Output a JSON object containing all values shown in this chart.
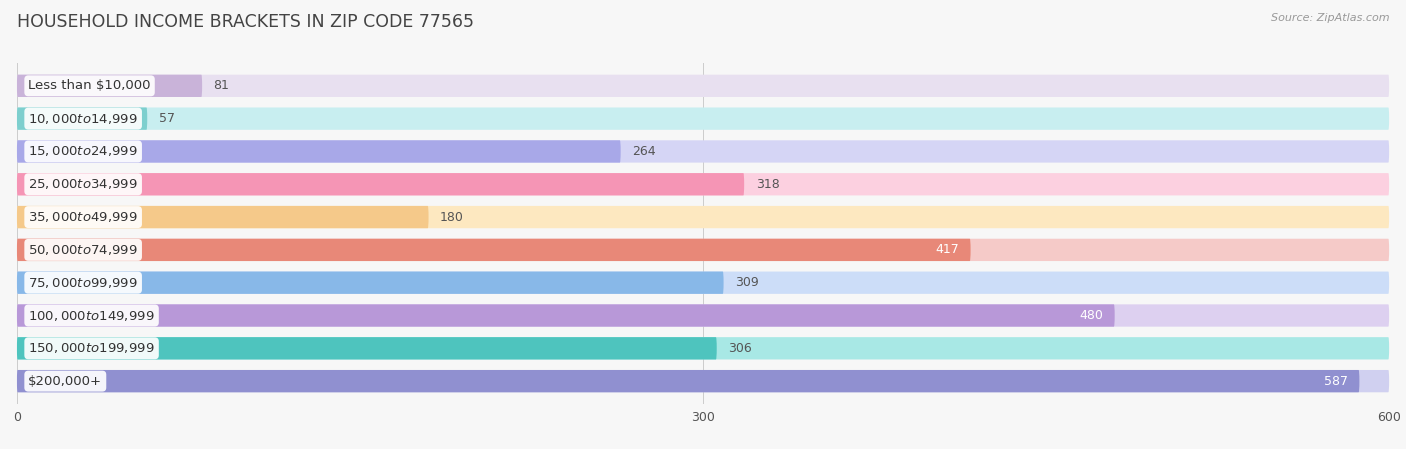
{
  "title": "HOUSEHOLD INCOME BRACKETS IN ZIP CODE 77565",
  "source": "Source: ZipAtlas.com",
  "categories": [
    "Less than $10,000",
    "$10,000 to $14,999",
    "$15,000 to $24,999",
    "$25,000 to $34,999",
    "$35,000 to $49,999",
    "$50,000 to $74,999",
    "$75,000 to $99,999",
    "$100,000 to $149,999",
    "$150,000 to $199,999",
    "$200,000+"
  ],
  "values": [
    81,
    57,
    264,
    318,
    180,
    417,
    309,
    480,
    306,
    587
  ],
  "bar_colors": [
    "#c9b3d9",
    "#7dcfce",
    "#a8a8e8",
    "#f595b5",
    "#f5c98a",
    "#e88878",
    "#88b8e8",
    "#b898d8",
    "#4ec4be",
    "#9090d0"
  ],
  "bar_bg_colors": [
    "#e8e0f0",
    "#c8eef0",
    "#d5d5f5",
    "#fcd0e0",
    "#fde8c0",
    "#f5cac8",
    "#ccddf8",
    "#ddd0f0",
    "#a8e8e5",
    "#d0d0f0"
  ],
  "value_inside": [
    false,
    false,
    false,
    false,
    false,
    true,
    false,
    true,
    false,
    true
  ],
  "xlim": [
    0,
    600
  ],
  "xticks": [
    0,
    300,
    600
  ],
  "background_color": "#f7f7f7",
  "title_fontsize": 12.5,
  "label_fontsize": 9.5,
  "value_fontsize": 9.0,
  "title_color": "#444444",
  "source_color": "#999999",
  "bar_height": 0.68
}
